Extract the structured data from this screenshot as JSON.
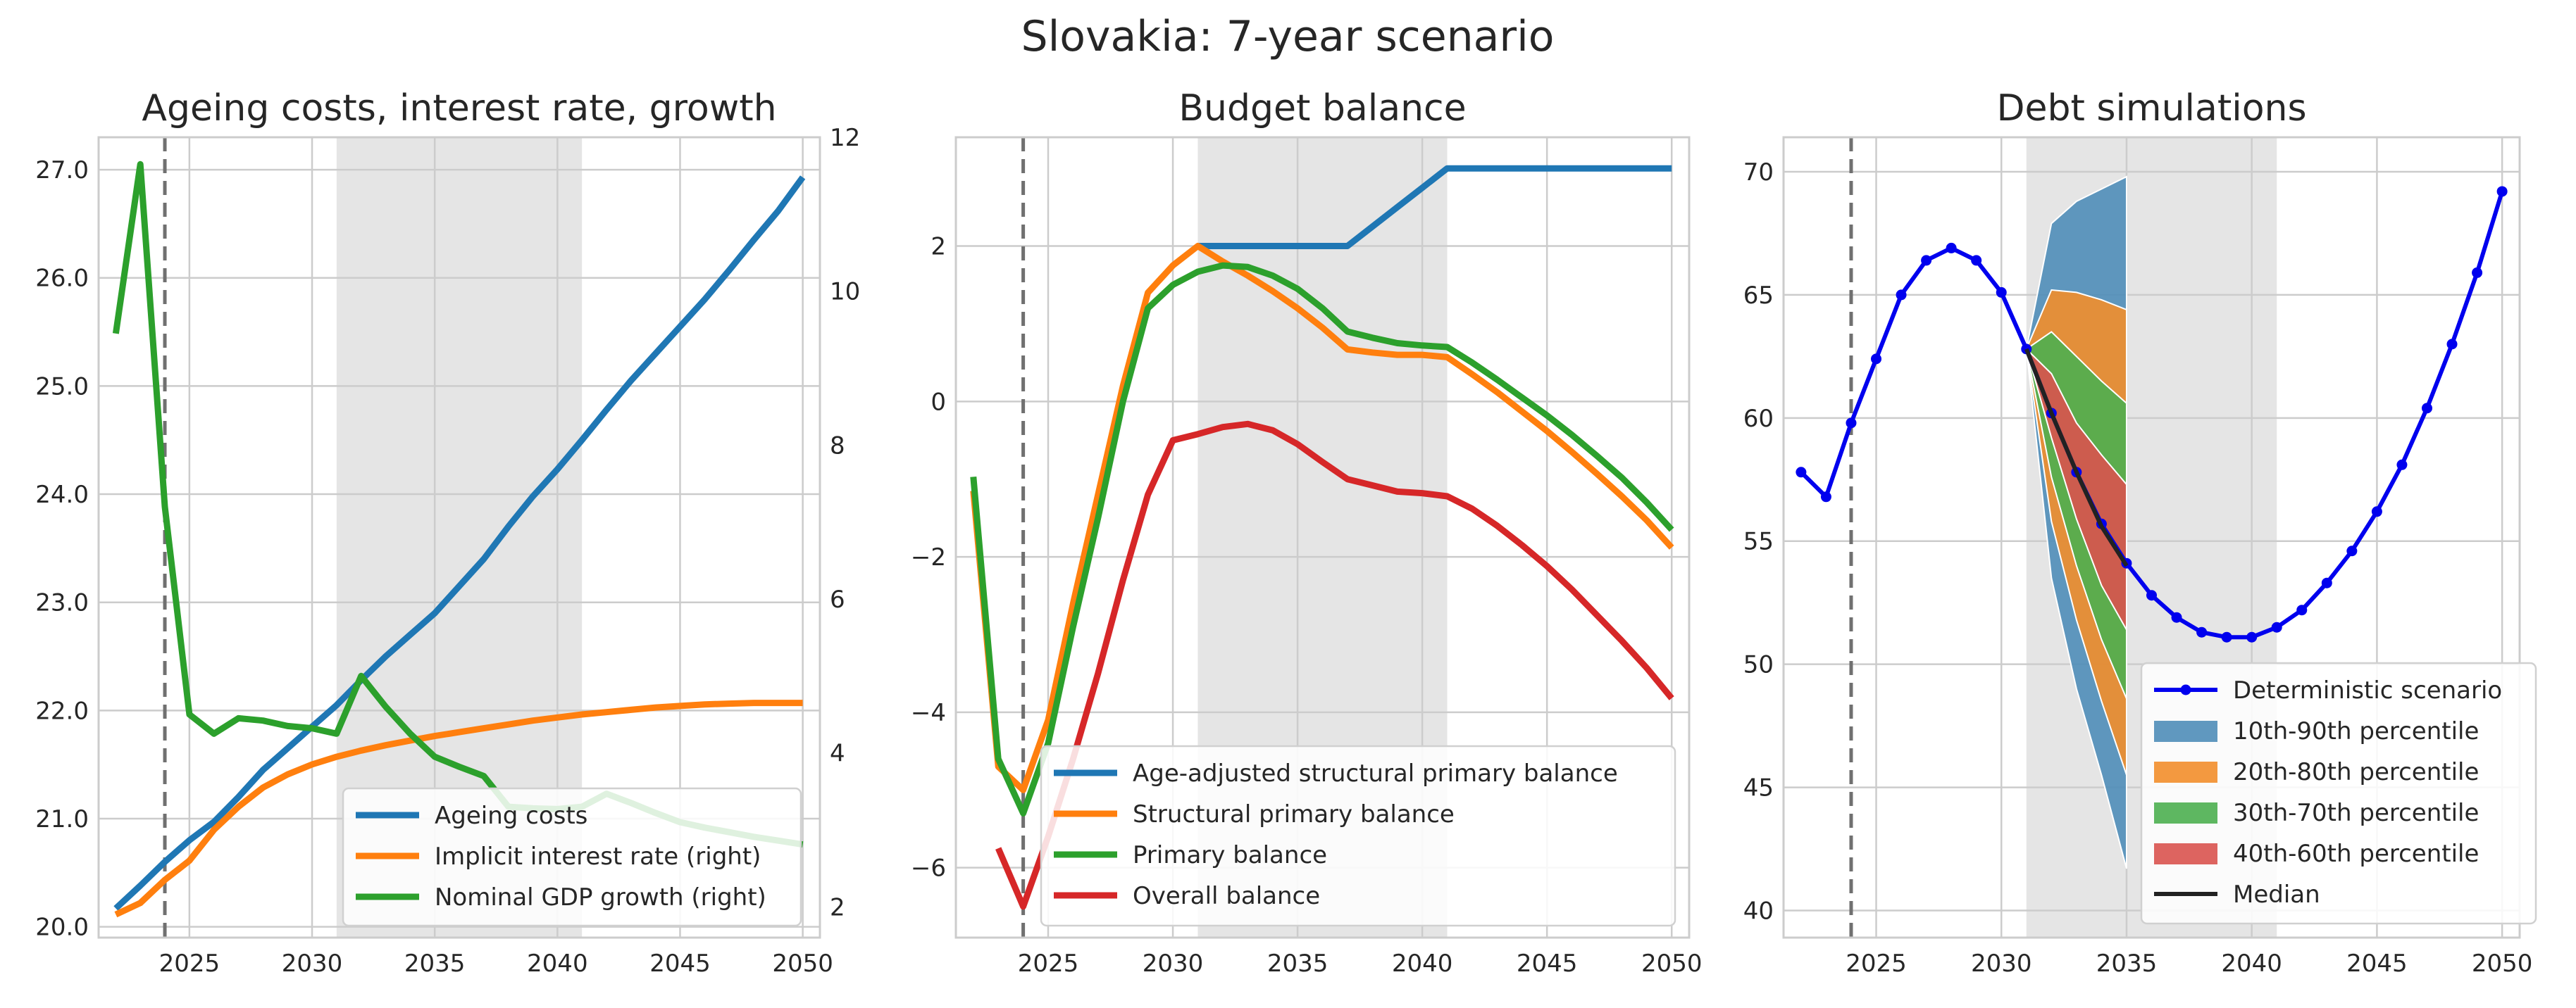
{
  "figure": {
    "title": "Slovakia: 7-year scenario"
  },
  "colors": {
    "blue": "#1f77b4",
    "orange": "#ff7f0e",
    "green": "#2ca02c",
    "red": "#d62728",
    "det_blue": "#0000ee",
    "median": "#222222",
    "band_10_90": "#4f8db8",
    "band_20_80": "#f28e2b",
    "band_30_70": "#4caf50",
    "band_40_60": "#d9534f",
    "shade": "#e5e5e5",
    "grid": "#cccccc",
    "vline": "#707070"
  },
  "chart_data": [
    {
      "type": "line",
      "title": "Ageing costs, interest rate, growth",
      "xlabel": "",
      "ylabel": "",
      "xlim": [
        2021.3,
        2050.7
      ],
      "ylim": [
        19.9,
        27.3
      ],
      "y2lim": [
        1.6,
        12.0
      ],
      "xticks": [
        2025,
        2030,
        2035,
        2040,
        2045,
        2050
      ],
      "yticks": [
        "20.0",
        "21.0",
        "22.0",
        "23.0",
        "24.0",
        "25.0",
        "26.0",
        "27.0"
      ],
      "y2ticks": [
        "2",
        "4",
        "6",
        "8",
        "10",
        "12"
      ],
      "shaded_region": [
        2031,
        2041
      ],
      "vline": 2024,
      "grid": true,
      "legend_position": "lower right",
      "series": [
        {
          "name": "Ageing costs",
          "axis": "left",
          "color": "blue",
          "x": [
            2022,
            2023,
            2024,
            2025,
            2026,
            2027,
            2028,
            2029,
            2030,
            2031,
            2032,
            2033,
            2034,
            2035,
            2036,
            2037,
            2038,
            2039,
            2040,
            2041,
            2042,
            2043,
            2044,
            2045,
            2046,
            2047,
            2048,
            2049,
            2050
          ],
          "y": [
            20.17,
            20.38,
            20.6,
            20.8,
            20.97,
            21.2,
            21.45,
            21.65,
            21.85,
            22.05,
            22.28,
            22.5,
            22.7,
            22.9,
            23.15,
            23.4,
            23.7,
            23.98,
            24.23,
            24.5,
            24.78,
            25.05,
            25.3,
            25.55,
            25.8,
            26.07,
            26.35,
            26.62,
            26.93
          ]
        },
        {
          "name": "Implicit interest rate (right)",
          "axis": "right",
          "color": "orange",
          "x": [
            2022,
            2023,
            2024,
            2025,
            2026,
            2027,
            2028,
            2029,
            2030,
            2031,
            2032,
            2033,
            2034,
            2035,
            2036,
            2037,
            2038,
            2039,
            2040,
            2041,
            2042,
            2043,
            2044,
            2045,
            2046,
            2047,
            2048,
            2049,
            2050
          ],
          "y": [
            1.9,
            2.05,
            2.35,
            2.6,
            3.0,
            3.3,
            3.55,
            3.72,
            3.85,
            3.95,
            4.03,
            4.1,
            4.16,
            4.22,
            4.27,
            4.32,
            4.37,
            4.42,
            4.46,
            4.5,
            4.53,
            4.56,
            4.59,
            4.61,
            4.63,
            4.64,
            4.65,
            4.65,
            4.65
          ]
        },
        {
          "name": "Nominal GDP growth (right)",
          "axis": "right",
          "color": "green",
          "x": [
            2022,
            2023,
            2024,
            2025,
            2026,
            2027,
            2028,
            2029,
            2030,
            2031,
            2032,
            2033,
            2034,
            2035,
            2036,
            2037,
            2038,
            2039,
            2040,
            2041,
            2042,
            2043,
            2044,
            2045,
            2046,
            2047,
            2048,
            2049,
            2050
          ],
          "y": [
            9.45,
            11.65,
            7.2,
            4.5,
            4.25,
            4.45,
            4.42,
            4.35,
            4.32,
            4.25,
            5.0,
            4.6,
            4.25,
            3.95,
            3.82,
            3.7,
            3.3,
            3.28,
            3.27,
            3.3,
            3.47,
            3.35,
            3.22,
            3.1,
            3.03,
            2.97,
            2.91,
            2.86,
            2.81
          ]
        }
      ]
    },
    {
      "type": "line",
      "title": "Budget balance",
      "xlabel": "",
      "ylabel": "",
      "xlim": [
        2021.3,
        2050.7
      ],
      "ylim": [
        -6.9,
        3.4
      ],
      "xticks": [
        2025,
        2030,
        2035,
        2040,
        2045,
        2050
      ],
      "yticks": [
        "−6",
        "−4",
        "−2",
        "0",
        "2"
      ],
      "shaded_region": [
        2031,
        2041
      ],
      "vline": 2024,
      "grid": true,
      "legend_position": "lower right",
      "series": [
        {
          "name": "Age-adjusted structural primary balance",
          "color": "blue",
          "x": [
            2031,
            2032,
            2033,
            2034,
            2035,
            2036,
            2037,
            2038,
            2039,
            2040,
            2041,
            2042,
            2043,
            2044,
            2045,
            2046,
            2047,
            2048,
            2049,
            2050
          ],
          "y": [
            2.0,
            2.0,
            2.0,
            2.0,
            2.0,
            2.0,
            2.0,
            2.25,
            2.5,
            2.75,
            3.0,
            3.0,
            3.0,
            3.0,
            3.0,
            3.0,
            3.0,
            3.0,
            3.0,
            3.0
          ]
        },
        {
          "name": "Structural primary balance",
          "color": "orange",
          "x": [
            2022,
            2023,
            2024,
            2025,
            2026,
            2027,
            2028,
            2029,
            2030,
            2031,
            2032,
            2033,
            2034,
            2035,
            2036,
            2037,
            2038,
            2039,
            2040,
            2041,
            2042,
            2043,
            2044,
            2045,
            2046,
            2047,
            2048,
            2049,
            2050
          ],
          "y": [
            -1.15,
            -4.7,
            -5.0,
            -4.1,
            -2.6,
            -1.2,
            0.2,
            1.4,
            1.75,
            2.0,
            1.8,
            1.62,
            1.42,
            1.2,
            0.95,
            0.67,
            0.63,
            0.6,
            0.6,
            0.57,
            0.35,
            0.12,
            -0.13,
            -0.38,
            -0.65,
            -0.93,
            -1.22,
            -1.53,
            -1.88
          ]
        },
        {
          "name": "Primary balance",
          "color": "green",
          "x": [
            2022,
            2023,
            2024,
            2025,
            2026,
            2027,
            2028,
            2029,
            2030,
            2031,
            2032,
            2033,
            2034,
            2035,
            2036,
            2037,
            2038,
            2039,
            2040,
            2041,
            2042,
            2043,
            2044,
            2045,
            2046,
            2047,
            2048,
            2049,
            2050
          ],
          "y": [
            -0.97,
            -4.6,
            -5.3,
            -4.4,
            -2.9,
            -1.5,
            0.0,
            1.2,
            1.5,
            1.67,
            1.75,
            1.73,
            1.62,
            1.45,
            1.2,
            0.9,
            0.82,
            0.75,
            0.72,
            0.7,
            0.5,
            0.28,
            0.05,
            -0.18,
            -0.43,
            -0.7,
            -0.98,
            -1.3,
            -1.65
          ]
        },
        {
          "name": "Overall balance",
          "color": "red",
          "x": [
            2023,
            2024,
            2025,
            2026,
            2027,
            2028,
            2029,
            2030,
            2031,
            2032,
            2033,
            2034,
            2035,
            2036,
            2037,
            2038,
            2039,
            2040,
            2041,
            2042,
            2043,
            2044,
            2045,
            2046,
            2047,
            2048,
            2049,
            2050
          ],
          "y": [
            -5.75,
            -6.5,
            -5.6,
            -4.6,
            -3.5,
            -2.3,
            -1.2,
            -0.5,
            -0.42,
            -0.33,
            -0.29,
            -0.37,
            -0.55,
            -0.78,
            -1.0,
            -1.08,
            -1.16,
            -1.18,
            -1.22,
            -1.38,
            -1.6,
            -1.85,
            -2.12,
            -2.42,
            -2.75,
            -3.08,
            -3.43,
            -3.82
          ]
        }
      ]
    },
    {
      "type": "area",
      "title": "Debt simulations",
      "xlabel": "",
      "ylabel": "",
      "xlim": [
        2021.3,
        2050.7
      ],
      "ylim": [
        38.9,
        71.4
      ],
      "xticks": [
        2025,
        2030,
        2035,
        2040,
        2045,
        2050
      ],
      "yticks": [
        "40",
        "45",
        "50",
        "55",
        "60",
        "65",
        "70"
      ],
      "shaded_region": [
        2031,
        2041
      ],
      "vline": 2024,
      "grid": true,
      "legend_position": "lower right",
      "deterministic": {
        "name": "Deterministic scenario",
        "color": "det_blue",
        "x": [
          2022,
          2023,
          2024,
          2025,
          2026,
          2027,
          2028,
          2029,
          2030,
          2031,
          2032,
          2033,
          2034,
          2035,
          2036,
          2037,
          2038,
          2039,
          2040,
          2041,
          2042,
          2043,
          2044,
          2045,
          2046,
          2047,
          2048,
          2049,
          2050
        ],
        "y": [
          57.8,
          56.8,
          59.8,
          62.4,
          65.0,
          66.4,
          66.9,
          66.4,
          65.1,
          62.8,
          60.2,
          57.8,
          55.7,
          54.1,
          52.8,
          51.9,
          51.3,
          51.1,
          51.1,
          51.5,
          52.2,
          53.3,
          54.6,
          56.2,
          58.1,
          60.4,
          63.0,
          65.9,
          69.2
        ]
      },
      "fan": {
        "x": [
          2031,
          2032,
          2033,
          2034,
          2035
        ],
        "bands": [
          {
            "name": "10th-90th percentile",
            "color": "band_10_90",
            "lower": [
              62.8,
              53.5,
              49.0,
              45.5,
              41.7
            ],
            "upper": [
              62.8,
              67.9,
              68.8,
              69.3,
              69.8
            ]
          },
          {
            "name": "20th-80th percentile",
            "color": "band_20_80",
            "lower": [
              62.8,
              55.8,
              51.8,
              48.5,
              45.5
            ],
            "upper": [
              62.8,
              65.2,
              65.1,
              64.8,
              64.4
            ]
          },
          {
            "name": "30th-70th percentile",
            "color": "band_30_70",
            "lower": [
              62.8,
              57.6,
              54.0,
              51.0,
              48.6
            ],
            "upper": [
              62.8,
              63.5,
              62.5,
              61.5,
              60.6
            ]
          },
          {
            "name": "40th-60th percentile",
            "color": "band_40_60",
            "lower": [
              62.8,
              59.2,
              55.9,
              53.2,
              51.4
            ],
            "upper": [
              62.8,
              61.8,
              59.8,
              58.5,
              57.3
            ]
          }
        ],
        "median": {
          "name": "Median",
          "color": "median",
          "y": [
            62.8,
            60.2,
            57.8,
            55.6,
            54.0
          ]
        }
      }
    }
  ]
}
